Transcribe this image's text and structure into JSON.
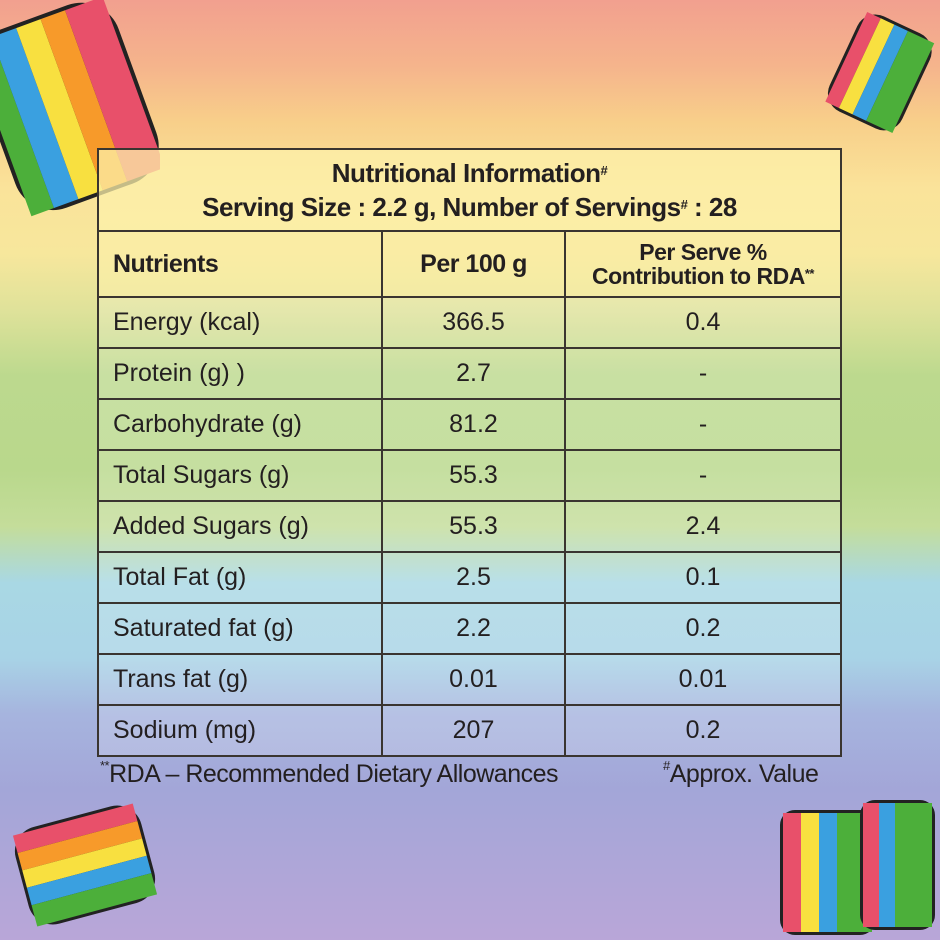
{
  "title": "Nutritional Information",
  "title_mark": "#",
  "serving_prefix": "Serving Size : 2.2 g, Number of Servings",
  "serving_mark": "#",
  "serving_suffix": " : 28",
  "headers": {
    "nutrients": "Nutrients",
    "per100": "Per 100 g",
    "perserve_line1": "Per Serve %",
    "perserve_line2": "Contribution to RDA",
    "perserve_mark": "**"
  },
  "rows": [
    {
      "name": "Energy (kcal)",
      "per100": "366.5",
      "rda": "0.4"
    },
    {
      "name": "Protein (g) )",
      "per100": "2.7",
      "rda": "-"
    },
    {
      "name": "Carbohydrate (g)",
      "per100": "81.2",
      "rda": "-"
    },
    {
      "name": "Total Sugars (g)",
      "per100": "55.3",
      "rda": "-"
    },
    {
      "name": "Added Sugars (g)",
      "per100": "55.3",
      "rda": "2.4"
    },
    {
      "name": "Total Fat (g)",
      "per100": "2.5",
      "rda": "0.1"
    },
    {
      "name": "Saturated fat (g)",
      "per100": "2.2",
      "rda": "0.2"
    },
    {
      "name": "Trans fat (g)",
      "per100": "0.01",
      "rda": "0.01"
    },
    {
      "name": "Sodium (mg)",
      "per100": "207",
      "rda": "0.2"
    }
  ],
  "footnote_rda_mark": "**",
  "footnote_rda": "RDA – Recommended Dietary Allowances",
  "footnote_approx_mark": "#",
  "footnote_approx": "Approx. Value",
  "colors": {
    "text": "#231f20",
    "header_bg": "#fcf0aa"
  }
}
